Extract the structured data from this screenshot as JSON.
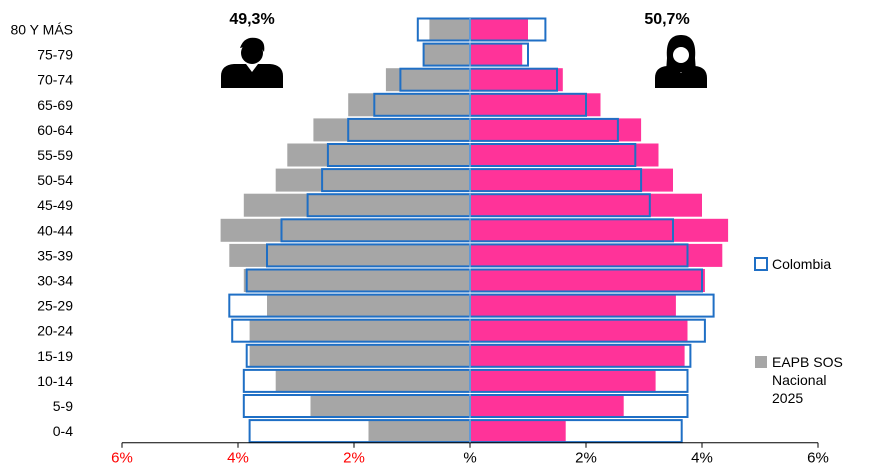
{
  "chart_data": {
    "type": "bar",
    "orientation": "horizontal-pyramid",
    "categories": [
      "0-4",
      "5-9",
      "10-14",
      "15-19",
      "20-24",
      "25-29",
      "30-34",
      "35-39",
      "40-44",
      "45-49",
      "50-54",
      "55-59",
      "60-64",
      "65-69",
      "70-74",
      "75-79",
      "80 Y MÁS"
    ],
    "xlim": [
      -6,
      6
    ],
    "x_ticks": [
      -6,
      -4,
      -2,
      0,
      2,
      4,
      6
    ],
    "x_tick_labels": [
      "6%",
      "4%",
      "2%",
      "%",
      "2%",
      "4%",
      "6%"
    ],
    "male_share_label": "49,3%",
    "female_share_label": "50,7%",
    "series": [
      {
        "name": "EAPB SOS Nacional 2025",
        "style": "filled",
        "male": [
          1.75,
          2.75,
          3.35,
          3.8,
          3.8,
          3.5,
          3.9,
          4.15,
          4.3,
          3.9,
          3.35,
          3.15,
          2.7,
          2.1,
          1.45,
          0.8,
          0.7
        ],
        "female": [
          1.65,
          2.65,
          3.2,
          3.7,
          3.75,
          3.55,
          4.05,
          4.35,
          4.45,
          4.0,
          3.5,
          3.25,
          2.95,
          2.25,
          1.6,
          0.9,
          1.0
        ]
      },
      {
        "name": "Colombia",
        "style": "outline",
        "male": [
          3.8,
          3.9,
          3.9,
          3.85,
          4.1,
          4.15,
          3.85,
          3.5,
          3.25,
          2.8,
          2.55,
          2.45,
          2.1,
          1.65,
          1.2,
          0.8,
          0.9
        ],
        "female": [
          3.65,
          3.75,
          3.75,
          3.8,
          4.05,
          4.2,
          4.0,
          3.75,
          3.5,
          3.1,
          2.95,
          2.85,
          2.55,
          2.0,
          1.5,
          1.0,
          1.3
        ]
      }
    ],
    "legend_position": "right",
    "grid": false
  },
  "colors": {
    "male_fill": "#a6a6a6",
    "female_fill": "#ff3399",
    "outline": "#1f6fc5",
    "axis": "#000000",
    "neg_tick_label": "#ff0000",
    "pos_tick_label": "#000000"
  },
  "icons": {
    "male": "man-silhouette-icon",
    "female": "woman-silhouette-icon"
  }
}
